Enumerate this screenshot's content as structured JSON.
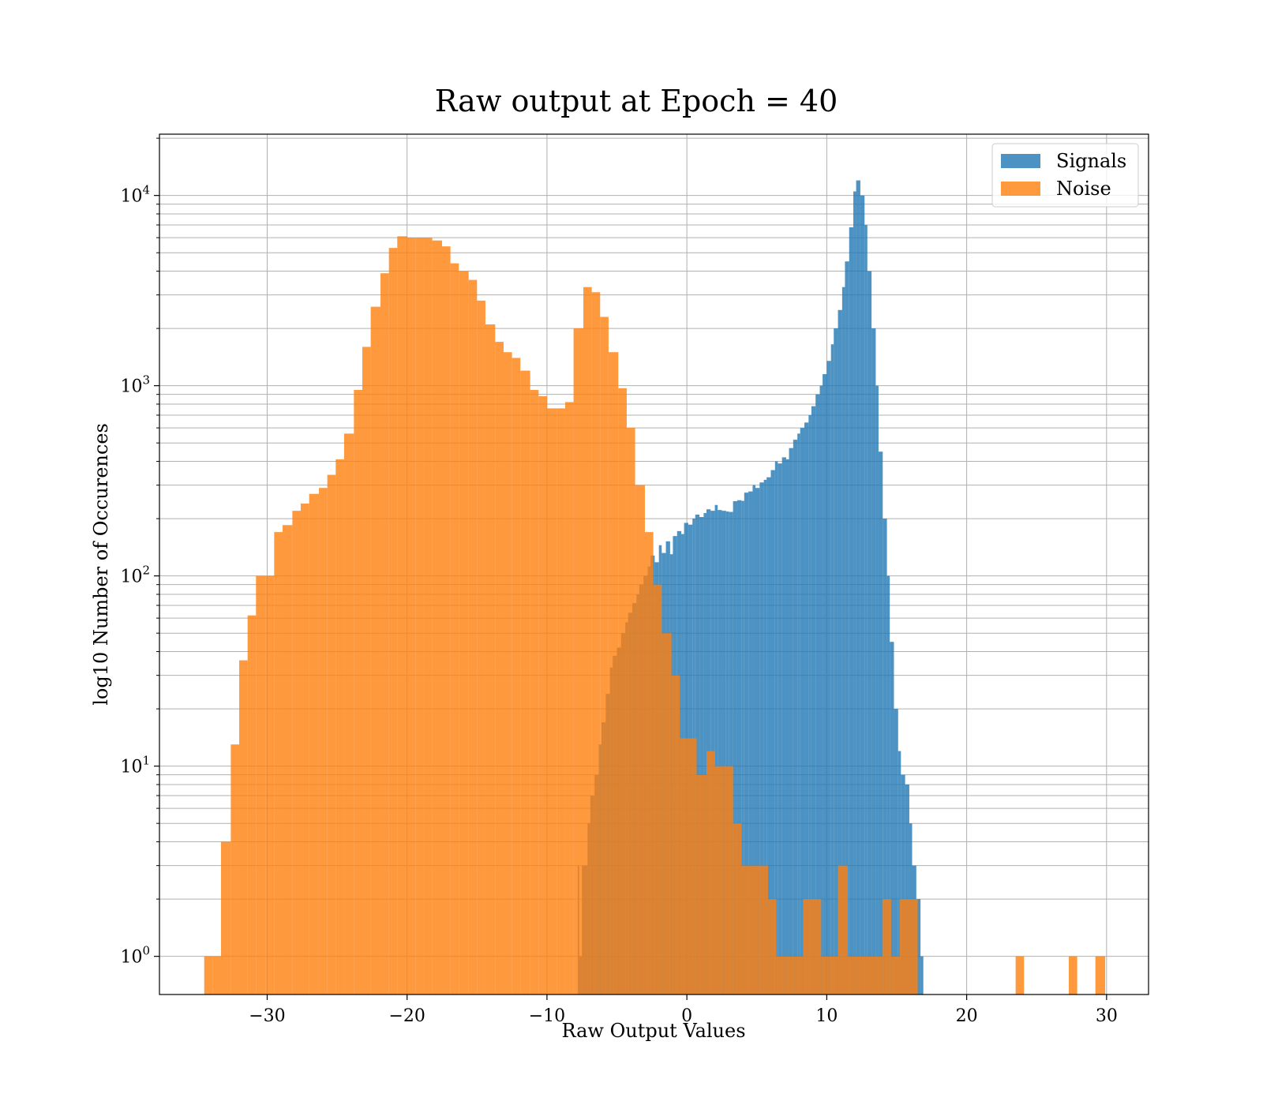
{
  "chart_data": {
    "type": "bar",
    "title": "Raw output at Epoch = 40",
    "xlabel": "Raw Output Values",
    "ylabel": "log10 Number of Occurences",
    "xlim": [
      -37.7,
      33
    ],
    "ylim": [
      0.63,
      21000
    ],
    "yscale": "log",
    "grid": true,
    "legend_position": "top-right",
    "x_ticks": [
      -30,
      -20,
      -10,
      0,
      10,
      20,
      30
    ],
    "x_tick_labels": [
      "−30",
      "−20",
      "−10",
      "0",
      "10",
      "20",
      "30"
    ],
    "y_ticks": [
      {
        "value": 1,
        "base": "10",
        "exp": "0"
      },
      {
        "value": 10,
        "base": "10",
        "exp": "1"
      },
      {
        "value": 100,
        "base": "10",
        "exp": "2"
      },
      {
        "value": 1000,
        "base": "10",
        "exp": "3"
      },
      {
        "value": 10000,
        "base": "10",
        "exp": "4"
      }
    ],
    "colors": {
      "signals": "#1f77b4",
      "noise": "#ff7f0e"
    },
    "series": [
      {
        "name": "Signals",
        "color": "#1f77b4",
        "bins": [
          [
            -7.8,
            -7.7,
            3
          ],
          [
            -7.7,
            -7.5,
            1
          ],
          [
            -7.5,
            -7.1,
            3
          ],
          [
            -7.1,
            -6.9,
            5
          ],
          [
            -6.9,
            -6.6,
            7
          ],
          [
            -6.6,
            -6.3,
            9
          ],
          [
            -6.3,
            -6.1,
            13
          ],
          [
            -6.1,
            -5.8,
            17
          ],
          [
            -5.8,
            -5.5,
            24
          ],
          [
            -5.5,
            -5.3,
            33
          ],
          [
            -5.3,
            -5.0,
            38
          ],
          [
            -5.0,
            -4.7,
            42
          ],
          [
            -4.7,
            -4.4,
            50
          ],
          [
            -4.4,
            -4.2,
            57
          ],
          [
            -4.2,
            -3.9,
            64
          ],
          [
            -3.9,
            -3.6,
            72
          ],
          [
            -3.6,
            -3.4,
            80
          ],
          [
            -3.4,
            -3.1,
            90
          ],
          [
            -3.1,
            -2.8,
            100
          ],
          [
            -2.8,
            -2.6,
            112
          ],
          [
            -2.6,
            -2.3,
            128
          ],
          [
            -2.3,
            -2.0,
            118
          ],
          [
            -2.0,
            -1.8,
            145
          ],
          [
            -1.8,
            -1.5,
            132
          ],
          [
            -1.5,
            -1.2,
            152
          ],
          [
            -1.2,
            -1.0,
            130
          ],
          [
            -1.0,
            -0.7,
            162
          ],
          [
            -0.7,
            -0.4,
            172
          ],
          [
            -0.4,
            -0.2,
            166
          ],
          [
            -0.2,
            0.1,
            190
          ],
          [
            0.1,
            0.4,
            186
          ],
          [
            0.4,
            0.6,
            200
          ],
          [
            0.6,
            0.9,
            210
          ],
          [
            0.9,
            1.2,
            204
          ],
          [
            1.2,
            1.4,
            214
          ],
          [
            1.4,
            1.7,
            224
          ],
          [
            1.7,
            2.0,
            220
          ],
          [
            2.0,
            2.2,
            236
          ],
          [
            2.2,
            2.5,
            222
          ],
          [
            2.5,
            2.8,
            220
          ],
          [
            2.8,
            3.0,
            218
          ],
          [
            3.0,
            3.3,
            217
          ],
          [
            3.3,
            3.6,
            247
          ],
          [
            3.6,
            3.9,
            250
          ],
          [
            3.9,
            4.1,
            248
          ],
          [
            4.1,
            4.4,
            274
          ],
          [
            4.4,
            4.7,
            278
          ],
          [
            4.7,
            4.9,
            300
          ],
          [
            4.9,
            5.2,
            290
          ],
          [
            5.2,
            5.5,
            310
          ],
          [
            5.5,
            5.7,
            320
          ],
          [
            5.7,
            6.0,
            330
          ],
          [
            6.0,
            6.3,
            360
          ],
          [
            6.3,
            6.5,
            400
          ],
          [
            6.5,
            6.8,
            390
          ],
          [
            6.8,
            7.1,
            420
          ],
          [
            7.1,
            7.3,
            410
          ],
          [
            7.3,
            7.6,
            470
          ],
          [
            7.6,
            7.9,
            520
          ],
          [
            7.9,
            8.1,
            560
          ],
          [
            8.1,
            8.4,
            600
          ],
          [
            8.4,
            8.7,
            640
          ],
          [
            8.7,
            8.9,
            700
          ],
          [
            8.9,
            9.2,
            780
          ],
          [
            9.2,
            9.5,
            900
          ],
          [
            9.5,
            9.7,
            1000
          ],
          [
            9.7,
            10.0,
            1150
          ],
          [
            10.0,
            10.3,
            1350
          ],
          [
            10.3,
            10.5,
            1650
          ],
          [
            10.5,
            10.8,
            2000
          ],
          [
            10.8,
            11.1,
            2500
          ],
          [
            11.1,
            11.3,
            3300
          ],
          [
            11.3,
            11.6,
            4500
          ],
          [
            11.6,
            11.9,
            6800
          ],
          [
            11.9,
            12.1,
            10500
          ],
          [
            12.1,
            12.4,
            12000
          ],
          [
            12.4,
            12.7,
            10000
          ],
          [
            12.7,
            12.9,
            7000
          ],
          [
            12.9,
            13.2,
            4000
          ],
          [
            13.2,
            13.5,
            2000
          ],
          [
            13.5,
            13.7,
            1000
          ],
          [
            13.7,
            14.0,
            450
          ],
          [
            14.0,
            14.3,
            200
          ],
          [
            14.3,
            14.5,
            100
          ],
          [
            14.5,
            14.8,
            45
          ],
          [
            14.8,
            15.1,
            20
          ],
          [
            15.1,
            15.3,
            12
          ],
          [
            15.3,
            15.6,
            9
          ],
          [
            15.6,
            15.9,
            8
          ],
          [
            15.9,
            16.1,
            5
          ],
          [
            16.1,
            16.4,
            3
          ],
          [
            16.4,
            16.7,
            2
          ],
          [
            16.7,
            16.9,
            1
          ]
        ]
      },
      {
        "name": "Noise",
        "color": "#ff7f0e",
        "bins": [
          [
            -34.5,
            -33.9,
            1
          ],
          [
            -33.9,
            -33.3,
            1
          ],
          [
            -33.3,
            -32.6,
            4
          ],
          [
            -32.6,
            -32.0,
            13
          ],
          [
            -32.0,
            -31.4,
            36
          ],
          [
            -31.4,
            -30.8,
            62
          ],
          [
            -30.8,
            -30.1,
            100
          ],
          [
            -30.1,
            -29.5,
            100
          ],
          [
            -29.5,
            -28.9,
            170
          ],
          [
            -28.9,
            -28.2,
            185
          ],
          [
            -28.2,
            -27.6,
            220
          ],
          [
            -27.6,
            -27.0,
            240
          ],
          [
            -27.0,
            -26.3,
            270
          ],
          [
            -26.3,
            -25.7,
            290
          ],
          [
            -25.7,
            -25.1,
            340
          ],
          [
            -25.1,
            -24.5,
            410
          ],
          [
            -24.5,
            -23.8,
            560
          ],
          [
            -23.8,
            -23.2,
            950
          ],
          [
            -23.2,
            -22.6,
            1600
          ],
          [
            -22.6,
            -21.9,
            2600
          ],
          [
            -21.9,
            -21.3,
            3900
          ],
          [
            -21.3,
            -20.7,
            5300
          ],
          [
            -20.7,
            -20.0,
            6100
          ],
          [
            -20.0,
            -19.4,
            6000
          ],
          [
            -19.4,
            -18.8,
            6000
          ],
          [
            -18.8,
            -18.2,
            6000
          ],
          [
            -18.2,
            -17.5,
            5800
          ],
          [
            -17.5,
            -16.9,
            5400
          ],
          [
            -16.9,
            -16.3,
            4400
          ],
          [
            -16.3,
            -15.6,
            4000
          ],
          [
            -15.6,
            -15.0,
            3600
          ],
          [
            -15.0,
            -14.4,
            2800
          ],
          [
            -14.4,
            -13.7,
            2100
          ],
          [
            -13.7,
            -13.1,
            1700
          ],
          [
            -13.1,
            -12.5,
            1500
          ],
          [
            -12.5,
            -11.9,
            1400
          ],
          [
            -11.9,
            -11.2,
            1200
          ],
          [
            -11.2,
            -10.6,
            950
          ],
          [
            -10.6,
            -10.0,
            880
          ],
          [
            -10.0,
            -9.3,
            760
          ],
          [
            -9.3,
            -8.7,
            760
          ],
          [
            -8.7,
            -8.1,
            820
          ],
          [
            -8.1,
            -7.4,
            2000
          ],
          [
            -7.4,
            -6.8,
            3300
          ],
          [
            -6.8,
            -6.2,
            3100
          ],
          [
            -6.2,
            -5.6,
            2300
          ],
          [
            -5.6,
            -4.9,
            1500
          ],
          [
            -4.9,
            -4.3,
            970
          ],
          [
            -4.3,
            -3.7,
            600
          ],
          [
            -3.7,
            -3.0,
            300
          ],
          [
            -3.0,
            -2.4,
            170
          ],
          [
            -2.4,
            -1.8,
            90
          ],
          [
            -1.8,
            -1.1,
            50
          ],
          [
            -1.1,
            -0.5,
            30
          ],
          [
            -0.5,
            0.1,
            14
          ],
          [
            0.1,
            0.7,
            14
          ],
          [
            0.7,
            1.4,
            9
          ],
          [
            1.4,
            2.0,
            12
          ],
          [
            2.0,
            2.6,
            10
          ],
          [
            2.6,
            3.3,
            10
          ],
          [
            3.3,
            3.9,
            5
          ],
          [
            3.9,
            4.5,
            3
          ],
          [
            4.5,
            5.2,
            3
          ],
          [
            5.2,
            5.8,
            3
          ],
          [
            5.8,
            6.4,
            2
          ],
          [
            6.4,
            7.0,
            1
          ],
          [
            7.0,
            7.7,
            1
          ],
          [
            7.7,
            8.3,
            1
          ],
          [
            8.3,
            8.9,
            2
          ],
          [
            8.9,
            9.6,
            2
          ],
          [
            9.6,
            10.2,
            1
          ],
          [
            10.2,
            10.8,
            1
          ],
          [
            10.8,
            11.5,
            3
          ],
          [
            11.5,
            12.1,
            1
          ],
          [
            12.1,
            12.7,
            1
          ],
          [
            12.7,
            13.3,
            1
          ],
          [
            13.3,
            14.0,
            1
          ],
          [
            14.0,
            14.6,
            2
          ],
          [
            14.6,
            15.2,
            1
          ],
          [
            15.2,
            15.9,
            2
          ],
          [
            15.9,
            16.5,
            2
          ],
          [
            23.5,
            24.1,
            1
          ],
          [
            27.3,
            27.9,
            1
          ],
          [
            29.2,
            29.9,
            1
          ]
        ]
      }
    ]
  }
}
